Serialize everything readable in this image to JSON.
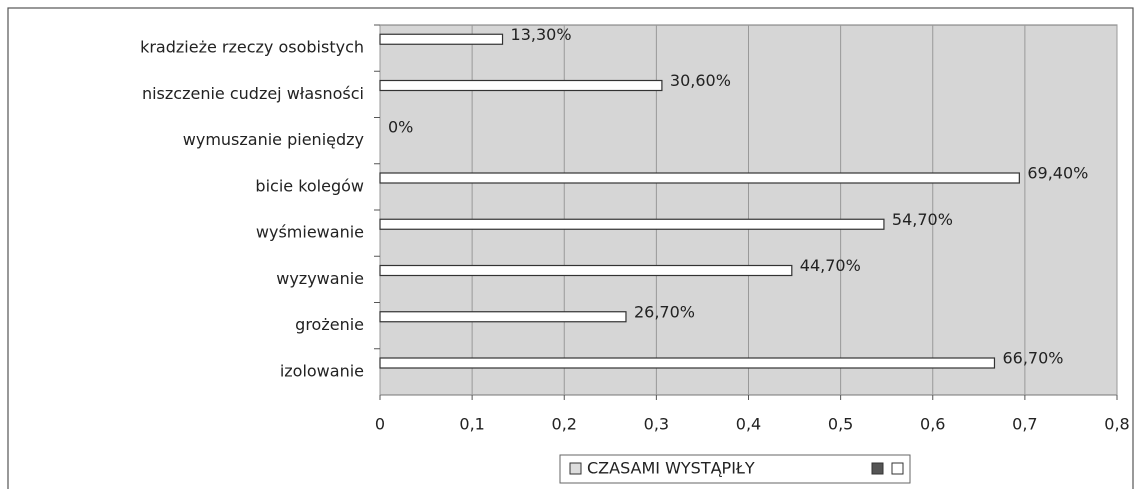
{
  "chart_data": {
    "type": "bar",
    "orientation": "horizontal",
    "categories": [
      "kradzieże rzeczy osobistych",
      "niszczenie cudzej własności",
      "wymuszanie pieniędzy",
      "bicie kolegów",
      "wyśmiewanie",
      "wyzywanie",
      "grożenie",
      "izolowanie"
    ],
    "series": [
      {
        "name": "CZASAMI WYSTĄPIŁY",
        "color": "#ffffff",
        "values": [
          0.133,
          0.306,
          0,
          0.694,
          0.547,
          0.447,
          0.267,
          0.667
        ],
        "value_labels": [
          "13,30%",
          "30,60%",
          "0%",
          "69,40%",
          "54,70%",
          "44,70%",
          "26,70%",
          "66,70%"
        ]
      }
    ],
    "xlim": [
      0,
      0.8
    ],
    "xticks": [
      0,
      {
        "value": 0.1,
        "label": "0,1"
      },
      {
        "value": 0.2,
        "label": "0,2"
      },
      {
        "value": 0.3,
        "label": "0,3"
      },
      {
        "value": 0.4,
        "label": "0,4"
      },
      {
        "value": 0.5,
        "label": "0,5"
      },
      {
        "value": 0.6,
        "label": "0,6"
      },
      {
        "value": 0.7,
        "label": "0,7"
      },
      {
        "value": 0.8,
        "label": "0,8"
      }
    ],
    "grid": true
  }
}
